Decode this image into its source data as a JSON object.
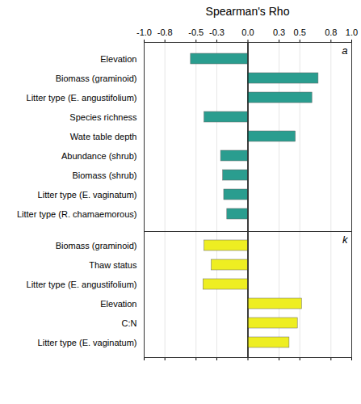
{
  "chart_data": [
    {
      "type": "bar",
      "orientation": "horizontal",
      "title": "Spearman's Rho",
      "annotation": "a",
      "categories": [
        "Elevation",
        "Biomass (graminoid)",
        "Litter type (E. angustifolium)",
        "Species richness",
        "Wate table depth",
        "Abundance (shrub)",
        "Biomass (shrub)",
        "Litter type (E. vaginatum)",
        "Litter type (R. chamaemorous)"
      ],
      "values": [
        -0.55,
        0.68,
        0.62,
        -0.42,
        0.46,
        -0.26,
        -0.24,
        -0.23,
        -0.2
      ],
      "color": "#2a9d8f",
      "xlim": [
        -1.0,
        1.0
      ],
      "xticks": [
        {
          "value": -1.0,
          "label": "-1.0"
        },
        -0.8,
        -0.5,
        -0.3,
        {
          "value": 0.0,
          "label": "0.0"
        },
        0.3,
        0.5,
        0.8,
        {
          "value": 1.0,
          "label": "1.0"
        }
      ],
      "grid": true
    },
    {
      "type": "bar",
      "orientation": "horizontal",
      "annotation": "k",
      "categories": [
        "Biomass (graminoid)",
        "Thaw status",
        "Litter type (E. angustifolium)",
        "Elevation",
        "C:N",
        "Litter type (E. vaginatum)"
      ],
      "values": [
        -0.42,
        -0.35,
        -0.43,
        0.52,
        0.48,
        0.4
      ],
      "color": "#eeee22",
      "xlim": [
        -1.0,
        1.0
      ],
      "xticks": [
        {
          "value": -1.0,
          "label": "-1.0"
        },
        -0.8,
        -0.5,
        -0.3,
        {
          "value": 0.0,
          "label": "0.0"
        },
        0.3,
        0.5,
        0.8,
        {
          "value": 1.0,
          "label": "1.0"
        }
      ],
      "grid": true,
      "tick_labels": "y"
    }
  ]
}
